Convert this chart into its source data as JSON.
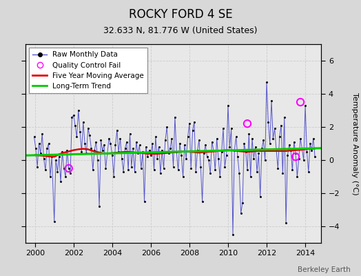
{
  "title": "ROCKY FORD 4 SE",
  "subtitle": "32.633 N, 81.776 W (United States)",
  "ylabel": "Temperature Anomaly (°C)",
  "credit": "Berkeley Earth",
  "ylim": [
    -5,
    7
  ],
  "yticks": [
    -4,
    -2,
    0,
    2,
    4,
    6
  ],
  "xlim": [
    1999.5,
    2014.83
  ],
  "xticks": [
    2000,
    2002,
    2004,
    2006,
    2008,
    2010,
    2012,
    2014
  ],
  "bg_color": "#d8d8d8",
  "plot_bg_color": "#e8e8e8",
  "raw_color": "#5555cc",
  "raw_marker_color": "#111111",
  "moving_avg_color": "#dd0000",
  "trend_color": "#00cc00",
  "qc_color": "#ff00ff",
  "raw_data": {
    "times": [
      1999.958,
      2000.042,
      2000.125,
      2000.208,
      2000.292,
      2000.375,
      2000.458,
      2000.542,
      2000.625,
      2000.708,
      2000.792,
      2000.875,
      2001.0,
      2001.083,
      2001.167,
      2001.25,
      2001.333,
      2001.417,
      2001.5,
      2001.583,
      2001.667,
      2001.75,
      2001.833,
      2001.917,
      2002.0,
      2002.083,
      2002.167,
      2002.25,
      2002.333,
      2002.417,
      2002.5,
      2002.583,
      2002.667,
      2002.75,
      2002.833,
      2002.917,
      2003.0,
      2003.083,
      2003.167,
      2003.25,
      2003.333,
      2003.417,
      2003.5,
      2003.583,
      2003.667,
      2003.75,
      2003.833,
      2003.917,
      2004.0,
      2004.083,
      2004.167,
      2004.25,
      2004.333,
      2004.417,
      2004.5,
      2004.583,
      2004.667,
      2004.75,
      2004.833,
      2004.917,
      2005.0,
      2005.083,
      2005.167,
      2005.25,
      2005.333,
      2005.417,
      2005.5,
      2005.583,
      2005.667,
      2005.75,
      2005.833,
      2005.917,
      2006.0,
      2006.083,
      2006.167,
      2006.25,
      2006.333,
      2006.417,
      2006.5,
      2006.583,
      2006.667,
      2006.75,
      2006.833,
      2006.917,
      2007.0,
      2007.083,
      2007.167,
      2007.25,
      2007.333,
      2007.417,
      2007.5,
      2007.583,
      2007.667,
      2007.75,
      2007.833,
      2007.917,
      2008.0,
      2008.083,
      2008.167,
      2008.25,
      2008.333,
      2008.417,
      2008.5,
      2008.583,
      2008.667,
      2008.75,
      2008.833,
      2008.917,
      2009.0,
      2009.083,
      2009.167,
      2009.25,
      2009.333,
      2009.417,
      2009.5,
      2009.583,
      2009.667,
      2009.75,
      2009.833,
      2009.917,
      2010.0,
      2010.083,
      2010.167,
      2010.25,
      2010.333,
      2010.417,
      2010.5,
      2010.583,
      2010.667,
      2010.75,
      2010.833,
      2010.917,
      2011.0,
      2011.083,
      2011.167,
      2011.25,
      2011.333,
      2011.417,
      2011.5,
      2011.583,
      2011.667,
      2011.75,
      2011.833,
      2011.917,
      2012.0,
      2012.083,
      2012.167,
      2012.25,
      2012.333,
      2012.417,
      2012.5,
      2012.583,
      2012.667,
      2012.75,
      2012.833,
      2012.917,
      2013.0,
      2013.083,
      2013.167,
      2013.25,
      2013.333,
      2013.417,
      2013.5,
      2013.583,
      2013.667,
      2013.75,
      2013.833,
      2013.917,
      2014.0,
      2014.083,
      2014.167,
      2014.25,
      2014.333,
      2014.417,
      2014.5
    ],
    "values": [
      1.4,
      0.7,
      -0.4,
      1.0,
      0.4,
      1.6,
      0.1,
      -0.6,
      0.7,
      1.0,
      -1.0,
      0.2,
      -3.7,
      0.0,
      -0.7,
      0.2,
      -1.3,
      0.5,
      -0.5,
      -1.0,
      0.6,
      -0.5,
      -0.8,
      2.6,
      2.7,
      2.1,
      1.4,
      3.0,
      1.7,
      0.5,
      2.3,
      1.0,
      0.4,
      1.9,
      1.5,
      0.7,
      -0.6,
      0.6,
      1.1,
      0.0,
      -2.8,
      1.2,
      0.6,
      0.9,
      -0.5,
      0.4,
      1.3,
      1.0,
      0.3,
      -1.0,
      0.9,
      1.8,
      0.5,
      1.3,
      0.1,
      -0.7,
      0.7,
      1.1,
      -0.6,
      1.6,
      -0.4,
      0.7,
      -0.7,
      1.1,
      0.4,
      0.9,
      -0.5,
      0.5,
      -2.5,
      0.8,
      0.2,
      0.6,
      0.3,
      1.0,
      -0.6,
      1.4,
      0.1,
      0.8,
      -0.8,
      0.6,
      -0.5,
      1.2,
      2.0,
      0.4,
      0.7,
      1.3,
      -0.4,
      2.6,
      0.5,
      -0.6,
      1.0,
      0.3,
      -1.0,
      0.9,
      0.1,
      1.4,
      2.2,
      -0.5,
      1.8,
      2.3,
      -0.7,
      0.6,
      1.2,
      -0.4,
      -2.5,
      0.4,
      0.9,
      0.2,
      0.0,
      -0.8,
      1.1,
      0.6,
      -0.6,
      1.3,
      0.1,
      -1.0,
      0.5,
      1.9,
      -0.4,
      0.3,
      3.3,
      0.8,
      1.9,
      -4.5,
      0.6,
      1.4,
      0.2,
      -0.8,
      -3.2,
      -2.6,
      1.0,
      0.5,
      -0.6,
      1.6,
      -1.0,
      1.3,
      0.1,
      0.8,
      -0.7,
      0.4,
      -2.2,
      0.7,
      1.2,
      0.0,
      4.7,
      2.3,
      1.0,
      3.6,
      1.3,
      1.9,
      0.6,
      -0.5,
      1.4,
      2.1,
      -0.8,
      2.6,
      -3.8,
      0.3,
      0.9,
      0.6,
      -0.6,
      1.1,
      0.4,
      -1.0,
      0.1,
      1.3,
      0.7,
      0.0,
      3.3,
      0.5,
      -0.7,
      1.0,
      0.6,
      1.3,
      0.2
    ]
  },
  "qc_fails": [
    [
      2001.75,
      -0.5
    ],
    [
      2011.0,
      2.2
    ],
    [
      2013.5,
      0.2
    ],
    [
      2013.75,
      3.5
    ]
  ],
  "moving_avg": {
    "times": [
      2000.0,
      2000.25,
      2000.5,
      2000.75,
      2001.0,
      2001.25,
      2001.5,
      2001.75,
      2002.0,
      2002.25,
      2002.5,
      2002.75,
      2003.0,
      2003.25,
      2003.5,
      2003.75,
      2004.0,
      2004.25,
      2004.5,
      2004.75,
      2005.0,
      2005.25,
      2005.5,
      2005.75,
      2006.0,
      2006.25,
      2006.5,
      2006.75,
      2007.0,
      2007.25,
      2007.5,
      2007.75,
      2008.0,
      2008.25,
      2008.5,
      2008.75,
      2009.0,
      2009.25,
      2009.5,
      2009.75,
      2010.0,
      2010.25,
      2010.5,
      2010.75,
      2011.0,
      2011.25,
      2011.5,
      2011.75,
      2012.0,
      2012.25,
      2012.5,
      2012.75,
      2013.0,
      2013.25,
      2013.5,
      2013.75,
      2014.0,
      2014.25,
      2014.5
    ],
    "values": [
      0.3,
      0.28,
      0.25,
      0.22,
      0.2,
      0.35,
      0.45,
      0.52,
      0.6,
      0.65,
      0.68,
      0.65,
      0.55,
      0.48,
      0.42,
      0.4,
      0.42,
      0.45,
      0.48,
      0.5,
      0.48,
      0.45,
      0.42,
      0.4,
      0.38,
      0.38,
      0.4,
      0.42,
      0.45,
      0.48,
      0.5,
      0.52,
      0.5,
      0.48,
      0.45,
      0.48,
      0.5,
      0.52,
      0.55,
      0.58,
      0.6,
      0.58,
      0.55,
      0.52,
      0.5,
      0.52,
      0.55,
      0.55,
      0.55,
      0.55,
      0.55,
      0.55,
      0.55,
      0.58,
      0.6,
      0.62,
      0.65,
      0.68,
      0.7
    ]
  },
  "trend": {
    "times": [
      1999.5,
      2014.83
    ],
    "values": [
      0.28,
      0.72
    ]
  }
}
